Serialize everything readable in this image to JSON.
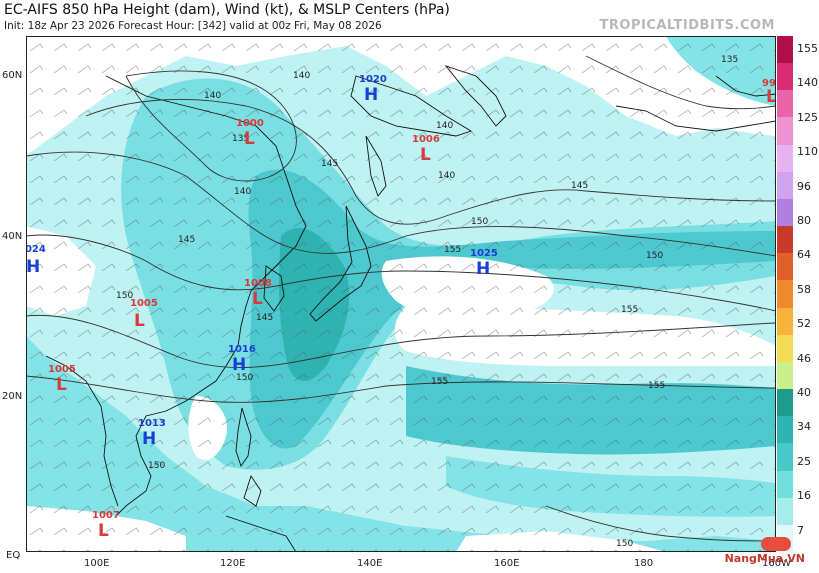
{
  "header": {
    "title": "EC-AIFS 850 hPa Height (dam), Wind (kt), & MSLP Centers (hPa)",
    "subtitle": "Init: 18z Apr 23 2026   Forecast Hour: [342]   valid at 00z Fri, May 08 2026",
    "brand": "TROPICALTIDBITS.COM"
  },
  "map": {
    "lat_labels": [
      "60N",
      "40N",
      "20N",
      "EQ"
    ],
    "lon_labels": [
      "100E",
      "120E",
      "140E",
      "160E",
      "180",
      "160W"
    ],
    "pressure_centers": [
      {
        "type": "H",
        "value": "1020",
        "color": "#1a3fd6"
      },
      {
        "type": "L",
        "value": "1000",
        "color": "#d63a3a"
      },
      {
        "type": "L",
        "value": "1006",
        "color": "#d63a3a"
      },
      {
        "type": "H",
        "value": "1024",
        "color": "#1a3fd6"
      },
      {
        "type": "H",
        "value": "1025",
        "color": "#1a3fd6"
      },
      {
        "type": "L",
        "value": "1008",
        "color": "#d63a3a"
      },
      {
        "type": "L",
        "value": "1005",
        "color": "#d63a3a"
      },
      {
        "type": "H",
        "value": "1016",
        "color": "#1a3fd6"
      },
      {
        "type": "L",
        "value": "1005",
        "color": "#d63a3a"
      },
      {
        "type": "H",
        "value": "1013",
        "color": "#1a3fd6"
      },
      {
        "type": "L",
        "value": "1007",
        "color": "#d63a3a"
      },
      {
        "type": "L",
        "value": "99",
        "color": "#d63a3a"
      }
    ],
    "contour_labels": [
      "140",
      "140",
      "140",
      "135",
      "140",
      "145",
      "140",
      "145",
      "150",
      "145",
      "150",
      "155",
      "150",
      "155",
      "145",
      "150",
      "155",
      "155",
      "150",
      "150",
      "135"
    ]
  },
  "colorbar": {
    "labels": [
      "155",
      "140",
      "125",
      "110",
      "96",
      "80",
      "64",
      "58",
      "52",
      "46",
      "40",
      "34",
      "25",
      "16",
      "7"
    ],
    "colors": [
      "#b0104a",
      "#d72b72",
      "#e865a6",
      "#ee92d2",
      "#e6b3ef",
      "#cfa3ee",
      "#b080e0",
      "#c93a2a",
      "#e0602a",
      "#ef8a2c",
      "#f5b33a",
      "#f2dd55",
      "#c9f08a",
      "#1e9a8e",
      "#2fb3b0",
      "#49c8ca",
      "#73dede",
      "#a6ecec",
      "#dff8f8"
    ]
  },
  "watermark": {
    "text": "NangMua.VN"
  }
}
